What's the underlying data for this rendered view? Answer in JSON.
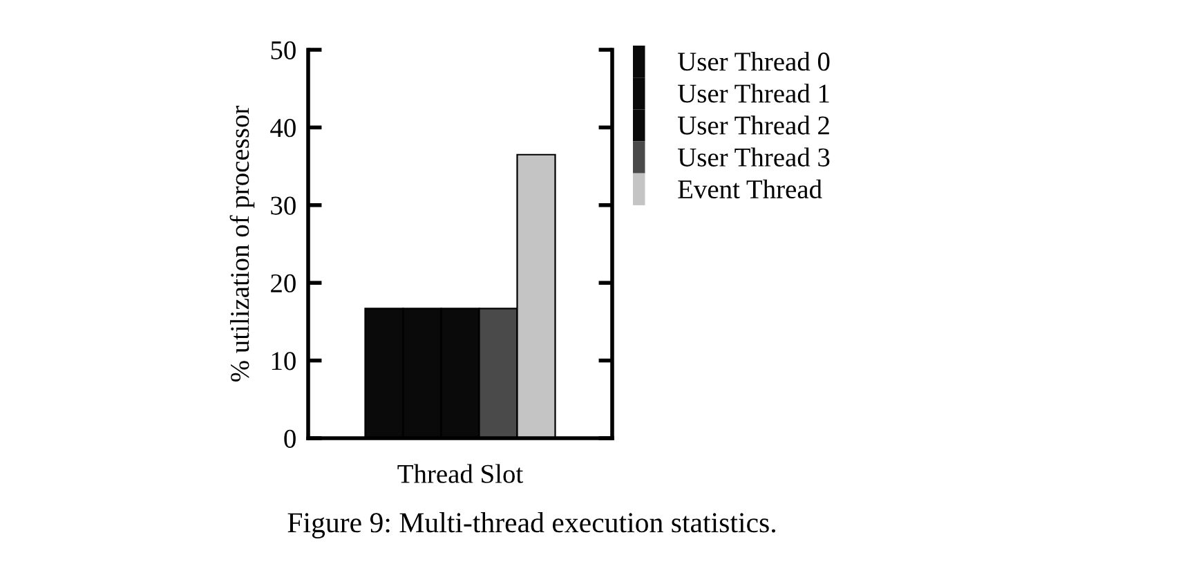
{
  "chart_data": {
    "type": "bar",
    "xlabel": "Thread Slot",
    "ylabel": "% utilization of processor",
    "categories": [
      null
    ],
    "series": [
      {
        "name": "User Thread 0",
        "color": "#0a0a0a",
        "values": [
          16.7
        ]
      },
      {
        "name": "User Thread 1",
        "color": "#0a0a0a",
        "values": [
          16.7
        ]
      },
      {
        "name": "User Thread 2",
        "color": "#0a0a0a",
        "values": [
          16.7
        ]
      },
      {
        "name": "User Thread 3",
        "color": "#4a4a4a",
        "values": [
          16.7
        ]
      },
      {
        "name": "Event Thread",
        "color": "#c4c4c4",
        "values": [
          36.5
        ]
      }
    ],
    "ylim": [
      0,
      50
    ],
    "yticks": [
      0,
      10,
      20,
      30,
      40,
      50
    ],
    "legend": "right",
    "annotations": [
      "Figure 9: Multi-thread execution statistics."
    ]
  }
}
